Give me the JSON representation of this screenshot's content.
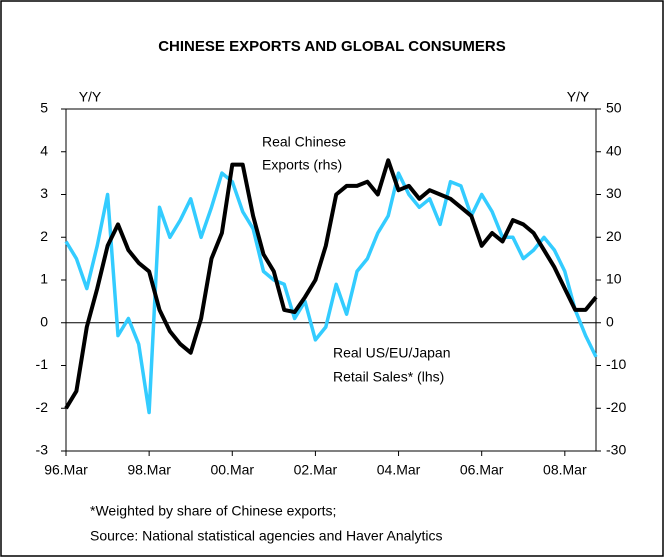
{
  "chart_data": {
    "type": "line",
    "title": "CHINESE EXPORTS AND GLOBAL CONSUMERS",
    "y_label": "Y/Y",
    "y2_label": "Y/Y",
    "categories": [
      "96.Mar",
      null,
      null,
      null,
      null,
      null,
      null,
      null,
      "98.Mar",
      null,
      null,
      null,
      null,
      null,
      null,
      null,
      "00.Mar",
      null,
      null,
      null,
      null,
      null,
      null,
      null,
      "02.Mar",
      null,
      null,
      null,
      null,
      null,
      null,
      null,
      "04.Mar",
      null,
      null,
      null,
      null,
      null,
      null,
      null,
      "06.Mar",
      null,
      null,
      null,
      null,
      null,
      null,
      null,
      "08.Mar",
      null,
      null,
      null
    ],
    "series": [
      {
        "color": "#33ccff",
        "values": [
          1.9,
          1.5,
          0.8,
          1.8,
          3.0,
          -0.3,
          0.1,
          -0.5,
          -2.1,
          2.7,
          2.0,
          2.4,
          2.9,
          2.0,
          2.7,
          3.5,
          3.3,
          2.6,
          2.2,
          1.2,
          1.0,
          0.9,
          0.1,
          0.5,
          -0.4,
          -0.1,
          0.9,
          0.2,
          1.2,
          1.5,
          2.1,
          2.5,
          3.5,
          3.0,
          2.7,
          2.9,
          2.3,
          3.3,
          3.2,
          2.5,
          3.0,
          2.6,
          2.0,
          2.0,
          1.5,
          1.7,
          2.0,
          1.7,
          1.2,
          0.3,
          -0.3,
          -0.8
        ]
      },
      {
        "color": "#000000",
        "axis": "y2",
        "values": [
          -20,
          -16,
          -1,
          8,
          18,
          23,
          17,
          14,
          12,
          3,
          -2,
          -5,
          -7,
          1,
          15,
          21,
          37,
          37,
          25,
          16,
          12,
          3,
          2.5,
          6,
          10,
          18,
          30,
          32,
          32,
          33,
          30,
          38,
          31,
          32,
          29,
          31,
          30,
          29,
          27,
          25,
          18,
          21,
          19,
          24,
          23,
          21,
          17,
          13,
          8,
          3,
          3,
          6
        ]
      }
    ],
    "ylim": [
      -3,
      5
    ],
    "yticks": [
      -3,
      -2,
      -1,
      0,
      1,
      2,
      3,
      4,
      5
    ],
    "y2lim": [
      -30,
      50
    ],
    "y2ticks": [
      -30,
      -20,
      -10,
      0,
      10,
      20,
      30,
      40,
      50
    ],
    "annotations": [
      [
        "Real Chinese",
        "Exports (rhs)"
      ],
      [
        "Real US/EU/Japan",
        "Retail Sales* (lhs)"
      ]
    ],
    "footnotes": [
      "*Weighted by share of Chinese exports;",
      "Source: National statistical agencies and Haver Analytics"
    ]
  }
}
